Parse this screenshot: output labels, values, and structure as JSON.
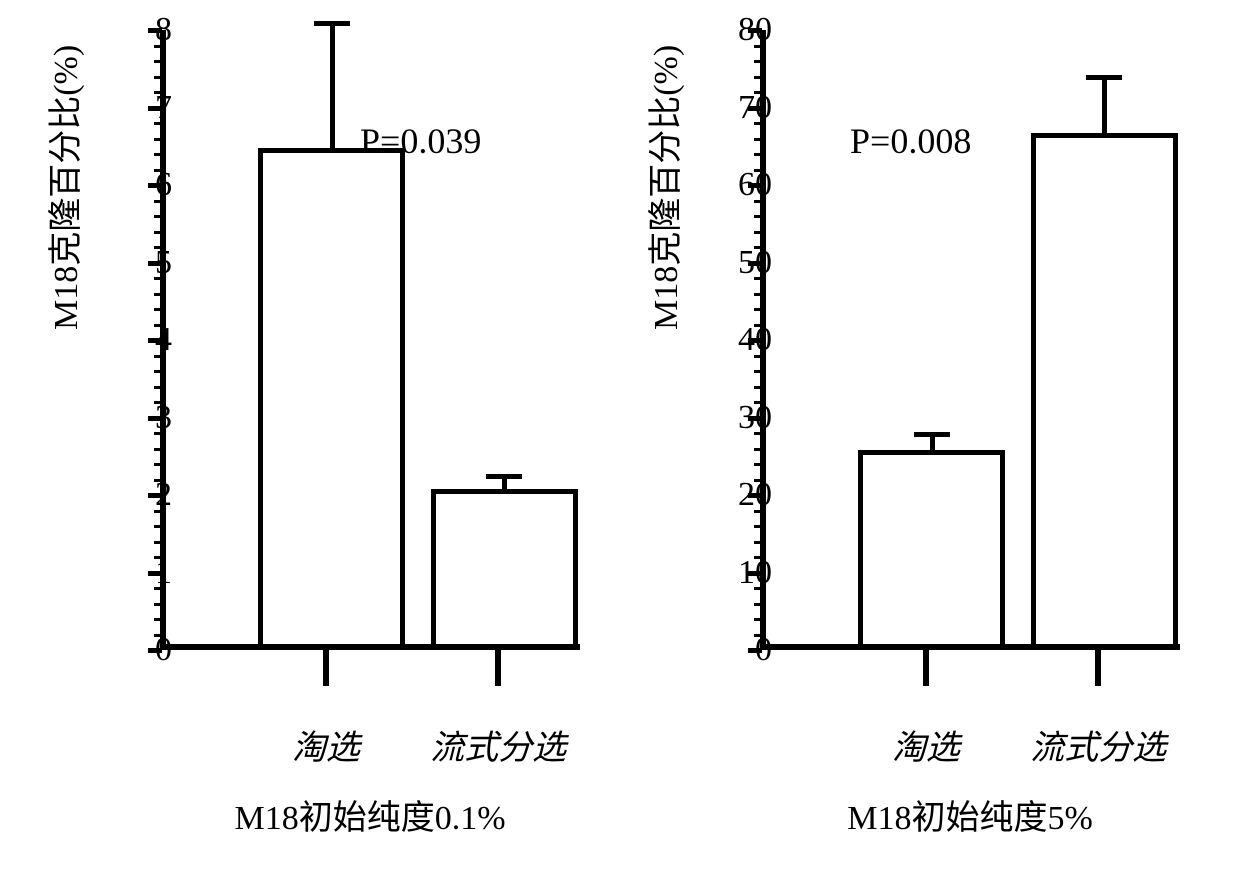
{
  "colors": {
    "background": "#ffffff",
    "axis": "#000000",
    "bar_fill": "#ffffff",
    "bar_stroke": "#000000",
    "text": "#000000"
  },
  "font": {
    "family": "Times New Roman, SimSun, serif",
    "tick_size": 34,
    "label_size": 34,
    "pvalue_size": 36
  },
  "left_chart": {
    "type": "bar",
    "ylabel": "M18克隆百分比(%)",
    "ylim": [
      0,
      8
    ],
    "ytick_step": 1,
    "yticks": [
      "0",
      "1",
      "2",
      "3",
      "4",
      "5",
      "6",
      "7",
      "8"
    ],
    "minor_ticks_per_interval": 4,
    "categories": [
      "淘选",
      "流式分选"
    ],
    "values": [
      6.4,
      2.0
    ],
    "errors": [
      1.6,
      0.15
    ],
    "bar_width": 0.35,
    "bar_positions": [
      0.22,
      0.63
    ],
    "bar_colors": [
      "#ffffff",
      "#ffffff"
    ],
    "bar_stroke_width": 5,
    "pvalue": "P=0.039",
    "subtitle": "M18初始纯度0.1%"
  },
  "right_chart": {
    "type": "bar",
    "ylabel": "M18克隆百分比(%)",
    "ylim": [
      0,
      80
    ],
    "ytick_step": 10,
    "yticks": [
      "0",
      "10",
      "20",
      "30",
      "40",
      "50",
      "60",
      "70",
      "80"
    ],
    "minor_ticks_per_interval": 4,
    "categories": [
      "淘选",
      "流式分选"
    ],
    "values": [
      25,
      66
    ],
    "errors": [
      2,
      7
    ],
    "bar_width": 0.35,
    "bar_positions": [
      0.22,
      0.63
    ],
    "bar_colors": [
      "#ffffff",
      "#ffffff"
    ],
    "bar_stroke_width": 5,
    "pvalue": "P=0.008",
    "subtitle": "M18初始纯度5%"
  }
}
